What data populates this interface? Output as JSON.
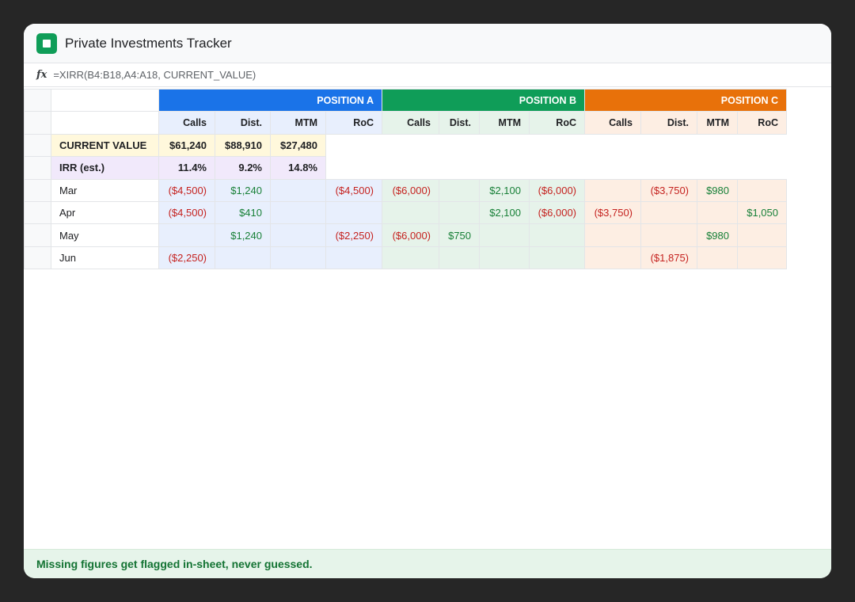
{
  "app": {
    "title": "Private Investments Tracker"
  },
  "formula_bar": {
    "fx_label": "fx",
    "formula": "=XIRR(B4:B18,A4:A18, CURRENT_VALUE)"
  },
  "groups": [
    "POSITION A",
    "POSITION B",
    "POSITION C"
  ],
  "columns": [
    "Calls",
    "Dist.",
    "MTM",
    "RoC",
    "Calls",
    "Dist.",
    "MTM",
    "RoC",
    "Calls",
    "Dist.",
    "MTM",
    "RoC"
  ],
  "current_value": {
    "label": "CURRENT VALUE",
    "values": [
      "$61,240",
      "$88,910",
      "$27,480"
    ]
  },
  "irr": {
    "label": "IRR (est.)",
    "values": [
      "11.4%",
      "9.2%",
      "14.8%"
    ]
  },
  "rows": [
    {
      "month": "Mar",
      "cells": [
        "($4,500)",
        "$1,240",
        "",
        "($4,500)",
        "($6,000)",
        "",
        "$2,100",
        "($6,000)",
        "",
        "($3,750)",
        "$980",
        ""
      ]
    },
    {
      "month": "Apr",
      "cells": [
        "($4,500)",
        "$410",
        "",
        "",
        "",
        "",
        "$2,100",
        "($6,000)",
        "($3,750)",
        "",
        "",
        "$1,050"
      ]
    },
    {
      "month": "May",
      "cells": [
        "",
        "$1,240",
        "",
        "($2,250)",
        "($6,000)",
        "$750",
        "",
        "",
        "",
        "",
        "$980",
        ""
      ]
    },
    {
      "month": "Jun",
      "cells": [
        "($2,250)",
        "",
        "",
        "",
        "",
        "",
        "",
        "",
        "",
        "($1,875)",
        "",
        ""
      ]
    }
  ],
  "footer": {
    "note": "Missing figures get flagged in-sheet, never guessed."
  },
  "colors": {
    "position_a": "#1a73e8",
    "position_b": "#0f9d58",
    "position_c": "#e8710a",
    "negative": "#c5221f",
    "positive": "#188038"
  }
}
